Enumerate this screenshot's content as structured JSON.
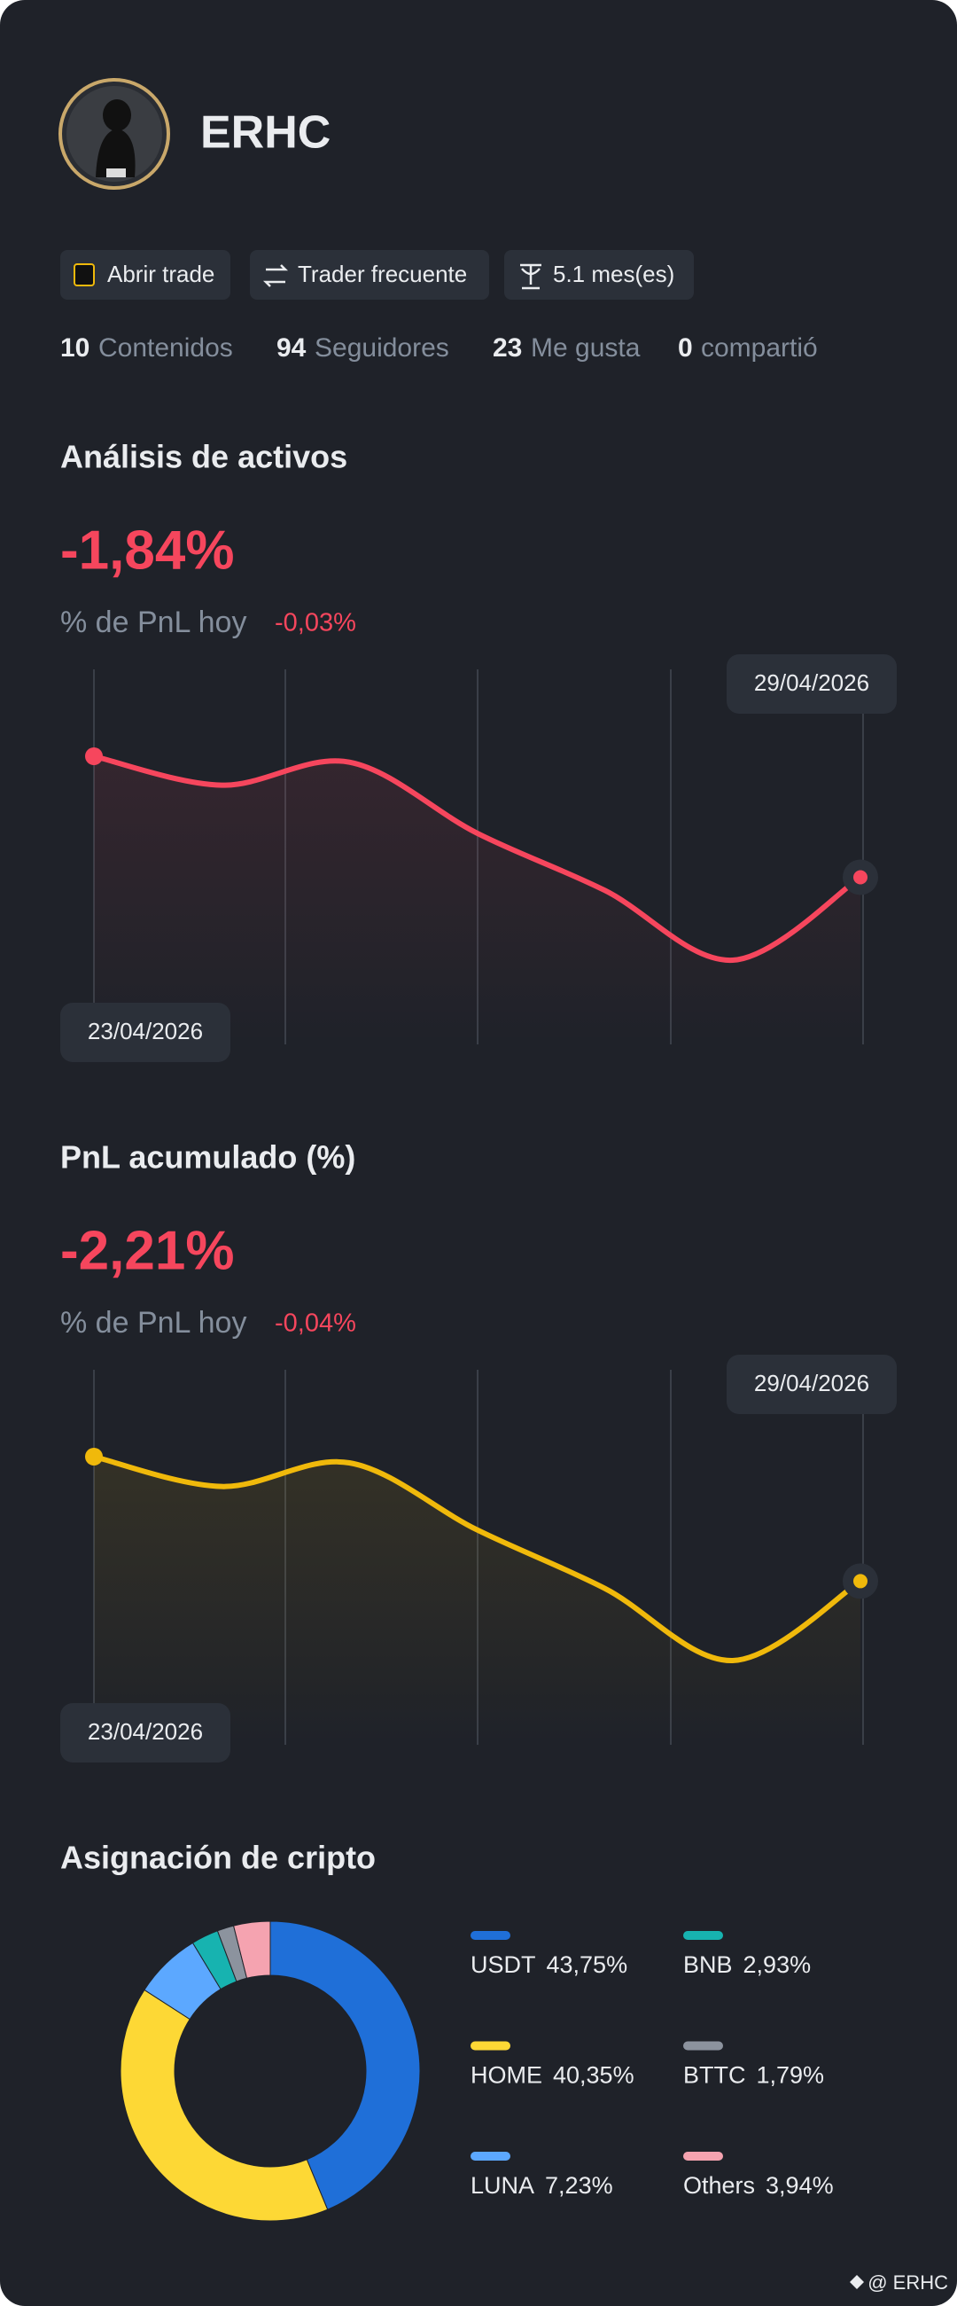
{
  "profile": {
    "name": "ERHC",
    "badges": [
      "Abrir trade",
      "Trader frecuente",
      "5.1 mes(es)"
    ],
    "stats": [
      {
        "value": 10,
        "label": "Contenidos"
      },
      {
        "value": 94,
        "label": "Seguidores"
      },
      {
        "value": 23,
        "label": "Me gusta"
      },
      {
        "value": 0,
        "label": "compartió"
      }
    ]
  },
  "chart_data": [
    {
      "type": "line",
      "title": "Análisis de activos",
      "headline": "-1,84%",
      "subtitle": "% de PnL hoy",
      "change": "-0,03%",
      "color": "#f6465d",
      "x": [
        "23/04/2026",
        null,
        null,
        null,
        null,
        null,
        "29/04/2026"
      ],
      "values": [
        0,
        -0.44,
        -0.09,
        -1.17,
        -2.04,
        -3.1,
        -1.84
      ]
    },
    {
      "type": "line",
      "title": "PnL acumulado (%)",
      "headline": "-2,21%",
      "subtitle": "% de PnL hoy",
      "change": "-0,04%",
      "color": "#f0b90b",
      "x": [
        "23/04/2026",
        null,
        null,
        null,
        null,
        null,
        "29/04/2026"
      ],
      "values": [
        0,
        -0.53,
        -0.11,
        -1.3,
        -2.34,
        -3.62,
        -2.21
      ]
    },
    {
      "type": "pie",
      "title": "Asignación de cripto",
      "categories": [
        "USDT",
        "HOME",
        "LUNA",
        "BNB",
        "BTTC",
        "Others"
      ],
      "values": [
        43.75,
        40.35,
        7.23,
        2.93,
        1.79,
        3.94
      ],
      "value_labels": [
        "43,75%",
        "40,35%",
        "7,23%",
        "2,93%",
        "1,79%",
        "3,94%"
      ],
      "colors": [
        "#1f6fd8",
        "#fdd835",
        "#5ca8ff",
        "#17b3b0",
        "#8c939e",
        "#f5a3b0"
      ]
    }
  ],
  "footer": {
    "watermark": "@ ERHC"
  }
}
